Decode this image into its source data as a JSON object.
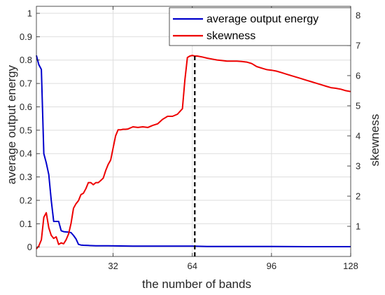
{
  "chart_data": {
    "type": "line",
    "xlabel": "the number of bands",
    "ylabel_left": "average output energy",
    "ylabel_right": "skewness",
    "xlim": [
      1,
      128
    ],
    "ylim_left": [
      -0.04,
      1.03
    ],
    "ylim_right": [
      0,
      8.3
    ],
    "xticks": [
      32,
      64,
      96,
      128
    ],
    "yticks_left": [
      0,
      0.1,
      0.2,
      0.3,
      0.4,
      0.5,
      0.6,
      0.7,
      0.8,
      0.9,
      1
    ],
    "yticks_right": [
      1,
      2,
      3,
      4,
      5,
      6,
      7,
      8
    ],
    "grid": true,
    "legend_position": "top-right",
    "vline": {
      "x": 65,
      "style": "dashed",
      "color": "#000000"
    },
    "series": [
      {
        "name": "average output energy",
        "axis": "left",
        "color": "#0000cc",
        "x": [
          1,
          2,
          3,
          4,
          5,
          6,
          7,
          8,
          9,
          10,
          11,
          12,
          13,
          14,
          15,
          16,
          17,
          18,
          19,
          20,
          22,
          25,
          30,
          35,
          40,
          50,
          60,
          64,
          70,
          80,
          96,
          110,
          128
        ],
        "y": [
          0.82,
          0.78,
          0.76,
          0.4,
          0.36,
          0.31,
          0.2,
          0.11,
          0.11,
          0.11,
          0.07,
          0.066,
          0.065,
          0.064,
          0.062,
          0.05,
          0.035,
          0.012,
          0.009,
          0.008,
          0.007,
          0.006,
          0.006,
          0.005,
          0.004,
          0.004,
          0.004,
          0.004,
          0.003,
          0.003,
          0.003,
          0.002,
          0.002
        ]
      },
      {
        "name": "skewness",
        "axis": "right",
        "color": "#ee0000",
        "x": [
          1,
          2,
          3,
          4,
          5,
          6,
          7,
          8,
          9,
          10,
          11,
          12,
          13,
          14,
          15,
          16,
          17,
          18,
          19,
          20,
          21,
          22,
          23,
          24,
          25,
          26,
          27,
          28,
          29,
          30,
          31,
          32,
          33,
          34,
          35,
          36,
          37,
          38,
          40,
          42,
          44,
          46,
          48,
          50,
          52,
          54,
          56,
          58,
          60,
          61,
          62,
          63,
          64,
          65,
          66,
          68,
          70,
          72,
          74,
          76,
          78,
          80,
          82,
          84,
          86,
          88,
          90,
          92,
          94,
          96,
          98,
          100,
          102,
          104,
          106,
          108,
          110,
          112,
          114,
          116,
          118,
          120,
          122,
          124,
          126,
          128
        ],
        "y": [
          0.25,
          0.35,
          0.55,
          1.3,
          1.45,
          0.95,
          0.7,
          0.6,
          0.65,
          0.4,
          0.45,
          0.42,
          0.55,
          0.75,
          1.1,
          1.6,
          1.75,
          1.85,
          2.05,
          2.1,
          2.25,
          2.45,
          2.45,
          2.38,
          2.45,
          2.45,
          2.52,
          2.6,
          2.85,
          3.05,
          3.2,
          3.6,
          4.0,
          4.2,
          4.2,
          4.22,
          4.22,
          4.23,
          4.3,
          4.28,
          4.3,
          4.28,
          4.35,
          4.4,
          4.55,
          4.65,
          4.65,
          4.72,
          4.9,
          5.85,
          6.6,
          6.65,
          6.67,
          6.65,
          6.65,
          6.62,
          6.58,
          6.55,
          6.52,
          6.5,
          6.48,
          6.48,
          6.48,
          6.47,
          6.45,
          6.4,
          6.3,
          6.25,
          6.2,
          6.18,
          6.15,
          6.1,
          6.05,
          6.0,
          5.95,
          5.9,
          5.85,
          5.8,
          5.75,
          5.7,
          5.65,
          5.6,
          5.58,
          5.55,
          5.5,
          5.47
        ]
      }
    ]
  }
}
